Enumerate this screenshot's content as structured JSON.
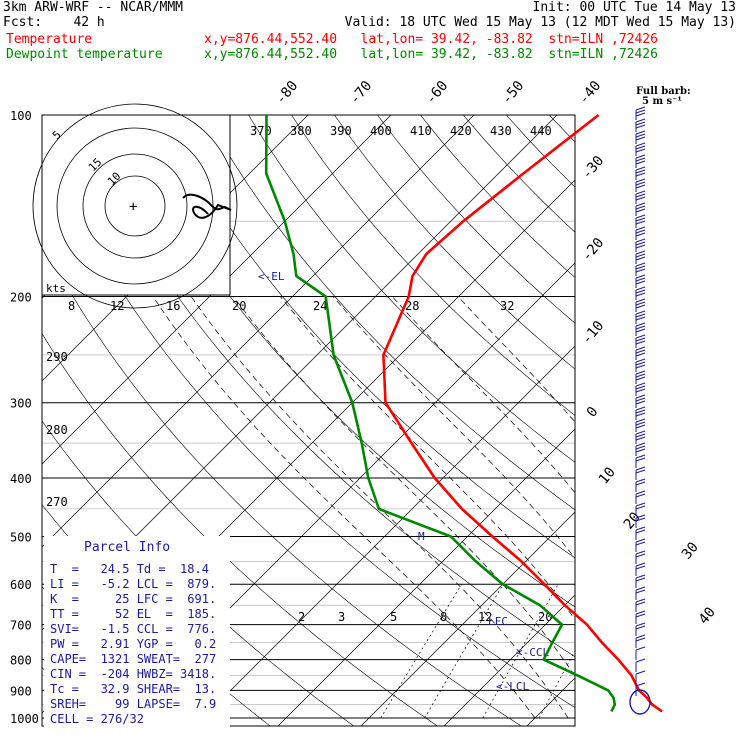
{
  "header": {
    "model": "3km ARW-WRF -- NCAR/MMM",
    "init": "Init: 00 UTC Tue 14 May 13",
    "fcst": "Fcst:    42 h",
    "valid": "Valid: 18 UTC Wed 15 May 13 (12 MDT Wed 15 May 13)",
    "temp_label": "Temperature",
    "temp_loc": "x,y=876.44,552.40   lat,lon= 39.42, -83.82  stn=ILN ,72426",
    "dew_label": "Dewpoint temperature",
    "dew_loc": "x,y=876.44,552.40   lat,lon= 39.42, -83.82  stn=ILN ,72426"
  },
  "colors": {
    "temperature": "#ff0000",
    "dewpoint": "#008800",
    "info": "#1a1aa0",
    "barbs": "#1a1aa0"
  },
  "barb_note": {
    "line1": "Full barb:",
    "line2": "5 m s⁻¹"
  },
  "parcel_info": {
    "title": "Parcel Info",
    "rows": [
      "T  =   24.5 Td =  18.4",
      "LI =   -5.2 LCL =  879.",
      "K  =     25 LFC =  691.",
      "TT =     52 EL  =  185.",
      "SVI=   -1.5 CCL =  776.",
      "PW =   2.91 YGP =   0.2",
      "CAPE=  1321 SWEAT=  277",
      "CIN =  -204 HWBZ= 3418.",
      "Tc =   32.9 SHEAR=  13.",
      "SREH=    99 LAPSE=  7.9",
      "CELL = 276/32"
    ]
  },
  "chart_data": {
    "type": "line",
    "title": "",
    "y_axis": {
      "label": "",
      "scale": "log-pressure",
      "ticks": [
        100,
        200,
        300,
        400,
        500,
        600,
        700,
        800,
        900,
        1000
      ],
      "ylim": [
        1050,
        100
      ]
    },
    "isotherm_labels": [
      "-80",
      "-70",
      "-60",
      "-50",
      "-40",
      "-30",
      "-20",
      "-10",
      "0",
      "10",
      "20",
      "30",
      "40"
    ],
    "theta_labels": [
      "370",
      "380",
      "390",
      "400",
      "410",
      "420",
      "430",
      "440"
    ],
    "theta_left_labels": [
      "290",
      "280",
      "270"
    ],
    "mixing_ratio_labels": [
      "2",
      "3",
      "5",
      "8",
      "12",
      "20"
    ],
    "hodograph": {
      "unit": "kts",
      "ring_labels": [
        "5",
        "10",
        "15"
      ],
      "speed_labels": [
        "8",
        "12",
        "16",
        "20",
        "24",
        "28",
        "32"
      ]
    },
    "annotations": [
      "<-EL",
      "LFC",
      "<-CCL",
      "<-LCL",
      "M"
    ],
    "series": [
      {
        "name": "Temperature",
        "x_temp_c": [
          24.5,
          22.5,
          21.0,
          19.2,
          16.5,
          13.0,
          9.0,
          5.0,
          0.0,
          -5.0,
          -10.5,
          -17.0,
          -24.0,
          -31.0,
          -38.0,
          -46.0,
          -52.0,
          -56.0,
          -58.0,
          -59.0,
          -58.5,
          -57.0,
          -55.0
        ],
        "p_hpa": [
          975,
          950,
          925,
          900,
          850,
          800,
          750,
          700,
          650,
          600,
          550,
          500,
          450,
          400,
          350,
          300,
          250,
          200,
          185,
          170,
          150,
          125,
          100
        ]
      },
      {
        "name": "Dewpoint temperature",
        "x_temp_c": [
          18.4,
          18.0,
          17.0,
          15.5,
          10.0,
          4.0,
          3.0,
          2.0,
          -3.0,
          -10.0,
          -16.0,
          -22.0,
          -34.0,
          -39.0,
          -44.0,
          -50.0,
          -58.0,
          -66.0,
          -72.0,
          -75.0,
          -80.0,
          -88.0,
          -95.0
        ],
        "p_hpa": [
          975,
          950,
          925,
          900,
          850,
          800,
          750,
          700,
          650,
          600,
          550,
          500,
          450,
          400,
          350,
          300,
          250,
          200,
          185,
          170,
          150,
          125,
          100
        ]
      }
    ]
  }
}
